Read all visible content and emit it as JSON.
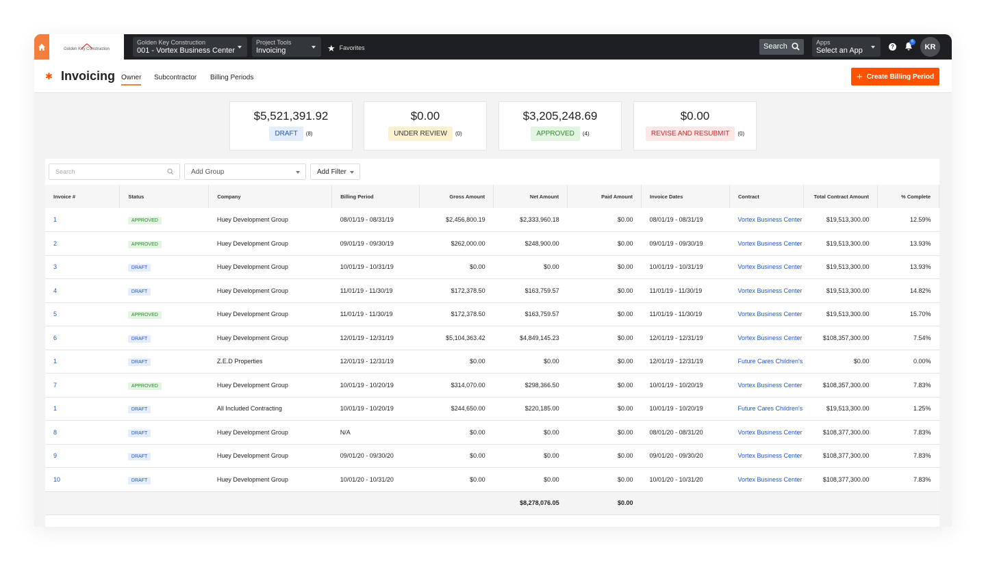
{
  "nav": {
    "company_label": "Golden Key Construction",
    "project": "001 - Vortex Business Center",
    "tools_label": "Project Tools",
    "tool": "Invoicing",
    "favorites": "Favorites",
    "search": "Search",
    "apps_label": "Apps",
    "apps_value": "Select an App",
    "notifications": "6",
    "avatar": "KR",
    "logo_text": "Golden Key Construction"
  },
  "header": {
    "title": "Invoicing",
    "tabs": [
      "Owner",
      "Subcontractor",
      "Billing Periods"
    ],
    "active_tab": "Owner",
    "create_button": "Create Billing Period"
  },
  "colors": {
    "accent": "#ff5200",
    "topbar": "#1d1f22",
    "link": "#2157c9"
  },
  "summary": [
    {
      "amount": "$5,521,391.92",
      "status": "DRAFT",
      "count": "(8)",
      "bg": "#e3edfb",
      "fg": "#2157c9"
    },
    {
      "amount": "$0.00",
      "status": "UNDER REVIEW",
      "count": "(0)",
      "bg": "#fbf1d0",
      "fg": "#333"
    },
    {
      "amount": "$3,205,248.69",
      "status": "APPROVED",
      "count": "(4)",
      "bg": "#e1f5e1",
      "fg": "#2b8a2b"
    },
    {
      "amount": "$0.00",
      "status": "REVISE AND RESUBMIT",
      "count": "(0)",
      "bg": "#fde6e6",
      "fg": "#d12a2a"
    }
  ],
  "toolbar": {
    "search_placeholder": "Search",
    "add_group": "Add Group",
    "add_filter": "Add Filter"
  },
  "table": {
    "columns": [
      "Invoice #",
      "Status",
      "Company",
      "Billing Period",
      "Gross Amount",
      "Net Amount",
      "Paid Amount",
      "Invoice Dates",
      "Contract",
      "Total Contract Amount",
      "% Complete"
    ],
    "rows": [
      [
        "1",
        "APPROVED",
        "Huey Development Group",
        "08/01/19 - 08/31/19",
        "$2,456,800.19",
        "$2,333,960.18",
        "$0.00",
        "08/01/19 - 08/31/19",
        "Vortex Business Center",
        "$19,513,300.00",
        "12.59%"
      ],
      [
        "2",
        "APPROVED",
        "Huey Development Group",
        "09/01/19 - 09/30/19",
        "$262,000.00",
        "$248,900.00",
        "$0.00",
        "09/01/19 - 09/30/19",
        "Vortex Business Center",
        "$19,513,300.00",
        "13.93%"
      ],
      [
        "3",
        "DRAFT",
        "Huey Development Group",
        "10/01/19 - 10/31/19",
        "$0.00",
        "$0.00",
        "$0.00",
        "10/01/19 - 10/31/19",
        "Vortex Business Center",
        "$19,513,300.00",
        "13.93%"
      ],
      [
        "4",
        "DRAFT",
        "Huey Development Group",
        "11/01/19 - 11/30/19",
        "$172,378.50",
        "$163,759.57",
        "$0.00",
        "11/01/19 - 11/30/19",
        "Vortex Business Center",
        "$19,513,300.00",
        "14.82%"
      ],
      [
        "5",
        "APPROVED",
        "Huey Development Group",
        "11/01/19 - 11/30/19",
        "$172,378.50",
        "$163,759.57",
        "$0.00",
        "11/01/19 - 11/30/19",
        "Vortex Business Center",
        "$19,513,300.00",
        "15.70%"
      ],
      [
        "6",
        "DRAFT",
        "Huey Development Group",
        "12/01/19 - 12/31/19",
        "$5,104,363.42",
        "$4,849,145.23",
        "$0.00",
        "12/01/19 - 12/31/19",
        "Vortex Business Center",
        "$108,357,300.00",
        "7.54%"
      ],
      [
        "1",
        "DRAFT",
        "Z.E.D Properties",
        "12/01/19 - 12/31/19",
        "$0.00",
        "$0.00",
        "$0.00",
        "12/01/19 - 12/31/19",
        "Future Cares Children's",
        "$0.00",
        "0.00%"
      ],
      [
        "7",
        "APPROVED",
        "Huey Development Group",
        "10/01/19 - 10/20/19",
        "$314,070.00",
        "$298,366.50",
        "$0.00",
        "10/01/19 - 10/20/19",
        "Vortex Business Center",
        "$108,357,300.00",
        "7.83%"
      ],
      [
        "1",
        "DRAFT",
        "All Included Contracting",
        "10/01/19 - 10/20/19",
        "$244,650.00",
        "$220,185.00",
        "$0.00",
        "10/01/19 - 10/20/19",
        "Future Cares Children's",
        "$19,513,300.00",
        "1.25%"
      ],
      [
        "8",
        "DRAFT",
        "Huey Development Group",
        "N/A",
        "$0.00",
        "$0.00",
        "$0.00",
        "08/01/20 - 08/31/20",
        "Vortex Business Center",
        "$108,377,300.00",
        "7.83%"
      ],
      [
        "9",
        "DRAFT",
        "Huey Development Group",
        "09/01/20 - 09/30/20",
        "$0.00",
        "$0.00",
        "$0.00",
        "09/01/20 - 09/30/20",
        "Vortex Business Center",
        "$108,377,300.00",
        "7.83%"
      ],
      [
        "10",
        "DRAFT",
        "Huey Development Group",
        "10/01/20 - 10/31/20",
        "$0.00",
        "$0.00",
        "$0.00",
        "10/01/20 - 10/31/20",
        "Vortex Business Center",
        "$108,377,300.00",
        "7.83%"
      ]
    ],
    "totals": {
      "net": "$8,278,076.05",
      "paid": "$0.00"
    }
  }
}
